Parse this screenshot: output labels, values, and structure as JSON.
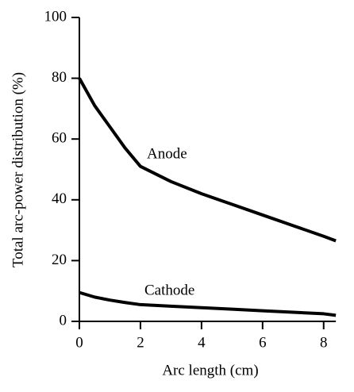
{
  "chart_data": {
    "type": "line",
    "xlabel": "Arc length (cm)",
    "ylabel": "Total arc-power distribution (%)",
    "x": [
      0,
      0.5,
      1,
      1.5,
      2,
      3,
      4,
      5,
      6,
      7,
      8,
      8.4
    ],
    "series": [
      {
        "name": "Anode",
        "color": "#000000",
        "values": [
          80,
          71,
          64,
          57,
          51,
          46,
          42,
          38.5,
          35,
          31.5,
          28,
          26.5
        ]
      },
      {
        "name": "Cathode",
        "color": "#000000",
        "values": [
          9.5,
          8,
          7,
          6.2,
          5.5,
          5,
          4.5,
          4,
          3.5,
          3,
          2.5,
          2
        ]
      }
    ],
    "xlim": [
      0,
      8.5
    ],
    "xticks": [
      0,
      2,
      4,
      6,
      8
    ],
    "ylim": [
      0,
      100
    ],
    "yticks": [
      0,
      20,
      40,
      60,
      80,
      100
    ]
  }
}
